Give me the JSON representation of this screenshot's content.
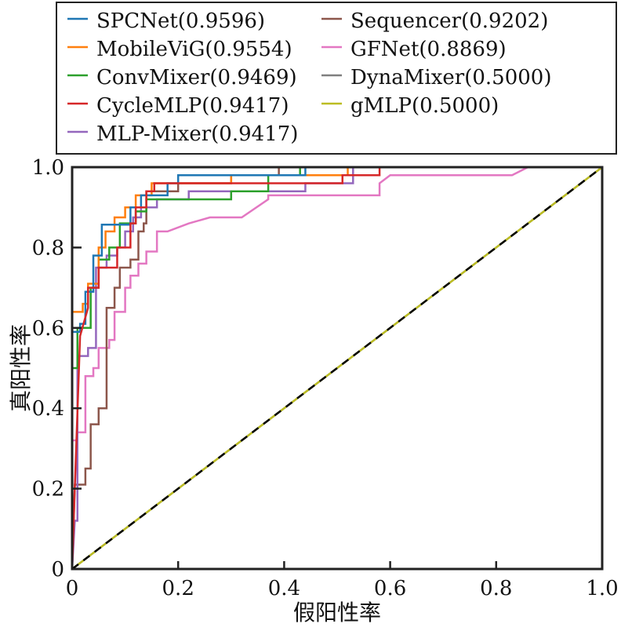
{
  "chart_data": {
    "type": "line",
    "xlabel": "假阳性率",
    "ylabel": "真阳性率",
    "xlim": [
      0,
      1
    ],
    "ylim": [
      0,
      1
    ],
    "xticks": [
      "0",
      "0.2",
      "0.4",
      "0.6",
      "0.8",
      "1.0"
    ],
    "yticks": [
      "0",
      "0.2",
      "0.4",
      "0.6",
      "0.8",
      "1.0"
    ],
    "grid": false,
    "legend_placement": "top, above plot",
    "reference_line": {
      "points": [
        [
          0,
          0
        ],
        [
          1,
          1
        ]
      ],
      "color": "#000000",
      "style": "dashed"
    },
    "series": [
      {
        "name": "SPCNet(0.9596)",
        "color": "#1f77b4",
        "points": [
          [
            0,
            0
          ],
          [
            0,
            0.59
          ],
          [
            0.015,
            0.59
          ],
          [
            0.015,
            0.61
          ],
          [
            0.025,
            0.61
          ],
          [
            0.025,
            0.69
          ],
          [
            0.04,
            0.69
          ],
          [
            0.04,
            0.78
          ],
          [
            0.056,
            0.78
          ],
          [
            0.056,
            0.857
          ],
          [
            0.11,
            0.857
          ],
          [
            0.11,
            0.9
          ],
          [
            0.13,
            0.9
          ],
          [
            0.13,
            0.93
          ],
          [
            0.18,
            0.93
          ],
          [
            0.18,
            0.96
          ],
          [
            0.2,
            0.96
          ],
          [
            0.2,
            0.98
          ],
          [
            0.44,
            0.98
          ],
          [
            0.44,
            1
          ],
          [
            1,
            1
          ]
        ]
      },
      {
        "name": "MobileViG(0.9554)",
        "color": "#ff7f0e",
        "points": [
          [
            0,
            0
          ],
          [
            0,
            0.64
          ],
          [
            0.02,
            0.64
          ],
          [
            0.02,
            0.66
          ],
          [
            0.03,
            0.66
          ],
          [
            0.03,
            0.71
          ],
          [
            0.05,
            0.71
          ],
          [
            0.05,
            0.8
          ],
          [
            0.063,
            0.8
          ],
          [
            0.063,
            0.84
          ],
          [
            0.08,
            0.84
          ],
          [
            0.08,
            0.875
          ],
          [
            0.1,
            0.875
          ],
          [
            0.1,
            0.9
          ],
          [
            0.12,
            0.9
          ],
          [
            0.12,
            0.93
          ],
          [
            0.15,
            0.93
          ],
          [
            0.15,
            0.96
          ],
          [
            0.3,
            0.96
          ],
          [
            0.3,
            0.98
          ],
          [
            0.52,
            0.98
          ],
          [
            0.52,
            1
          ],
          [
            1,
            1
          ]
        ]
      },
      {
        "name": "ConvMixer(0.9469)",
        "color": "#2ca02c",
        "points": [
          [
            0,
            0
          ],
          [
            0,
            0.5
          ],
          [
            0.01,
            0.5
          ],
          [
            0.01,
            0.6
          ],
          [
            0.035,
            0.6
          ],
          [
            0.035,
            0.7
          ],
          [
            0.05,
            0.7
          ],
          [
            0.05,
            0.77
          ],
          [
            0.07,
            0.77
          ],
          [
            0.07,
            0.8
          ],
          [
            0.09,
            0.8
          ],
          [
            0.09,
            0.86
          ],
          [
            0.12,
            0.86
          ],
          [
            0.12,
            0.89
          ],
          [
            0.14,
            0.89
          ],
          [
            0.14,
            0.92
          ],
          [
            0.3,
            0.92
          ],
          [
            0.3,
            0.94
          ],
          [
            0.37,
            0.94
          ],
          [
            0.37,
            0.98
          ],
          [
            0.43,
            0.98
          ],
          [
            0.43,
            1
          ],
          [
            1,
            1
          ]
        ]
      },
      {
        "name": "CycleMLP(0.9417)",
        "color": "#d62728",
        "points": [
          [
            0,
            0
          ],
          [
            0.005,
            0.2
          ],
          [
            0.015,
            0.58
          ],
          [
            0.03,
            0.65
          ],
          [
            0.03,
            0.7
          ],
          [
            0.05,
            0.7
          ],
          [
            0.05,
            0.75
          ],
          [
            0.085,
            0.75
          ],
          [
            0.085,
            0.8
          ],
          [
            0.11,
            0.8
          ],
          [
            0.11,
            0.86
          ],
          [
            0.12,
            0.86
          ],
          [
            0.12,
            0.9
          ],
          [
            0.14,
            0.9
          ],
          [
            0.14,
            0.94
          ],
          [
            0.155,
            0.94
          ],
          [
            0.155,
            0.96
          ],
          [
            0.51,
            0.96
          ],
          [
            0.51,
            0.98
          ],
          [
            0.58,
            0.98
          ],
          [
            0.58,
            1
          ],
          [
            1,
            1
          ]
        ]
      },
      {
        "name": "MLP-Mixer(0.9417)",
        "color": "#9467bd",
        "points": [
          [
            0,
            0
          ],
          [
            0.005,
            0.12
          ],
          [
            0.01,
            0.12
          ],
          [
            0.01,
            0.53
          ],
          [
            0.03,
            0.53
          ],
          [
            0.03,
            0.55
          ],
          [
            0.045,
            0.55
          ],
          [
            0.045,
            0.75
          ],
          [
            0.065,
            0.75
          ],
          [
            0.065,
            0.78
          ],
          [
            0.085,
            0.78
          ],
          [
            0.085,
            0.8
          ],
          [
            0.1,
            0.8
          ],
          [
            0.1,
            0.84
          ],
          [
            0.115,
            0.84
          ],
          [
            0.115,
            0.875
          ],
          [
            0.13,
            0.875
          ],
          [
            0.13,
            0.9
          ],
          [
            0.16,
            0.9
          ],
          [
            0.16,
            0.92
          ],
          [
            0.22,
            0.92
          ],
          [
            0.22,
            0.94
          ],
          [
            0.44,
            0.94
          ],
          [
            0.44,
            0.96
          ],
          [
            0.53,
            0.96
          ],
          [
            0.53,
            1
          ],
          [
            1,
            1
          ]
        ]
      },
      {
        "name": "Sequencer(0.9202)",
        "color": "#8c564b",
        "points": [
          [
            0,
            0
          ],
          [
            0.005,
            0.21
          ],
          [
            0.025,
            0.21
          ],
          [
            0.025,
            0.25
          ],
          [
            0.035,
            0.25
          ],
          [
            0.035,
            0.36
          ],
          [
            0.05,
            0.36
          ],
          [
            0.05,
            0.4
          ],
          [
            0.065,
            0.4
          ],
          [
            0.065,
            0.65
          ],
          [
            0.08,
            0.65
          ],
          [
            0.08,
            0.7
          ],
          [
            0.09,
            0.7
          ],
          [
            0.09,
            0.75
          ],
          [
            0.11,
            0.75
          ],
          [
            0.11,
            0.77
          ],
          [
            0.125,
            0.77
          ],
          [
            0.125,
            0.84
          ],
          [
            0.135,
            0.84
          ],
          [
            0.135,
            0.86
          ],
          [
            0.14,
            0.86
          ],
          [
            0.14,
            0.94
          ],
          [
            0.2,
            0.94
          ],
          [
            0.2,
            0.96
          ],
          [
            0.3,
            0.96
          ],
          [
            0.3,
            0.98
          ],
          [
            0.39,
            0.98
          ],
          [
            0.39,
            1
          ],
          [
            1,
            1
          ]
        ]
      },
      {
        "name": "GFNet(0.8869)",
        "color": "#e377c2",
        "points": [
          [
            0,
            0
          ],
          [
            0,
            0.32
          ],
          [
            0.01,
            0.32
          ],
          [
            0.01,
            0.34
          ],
          [
            0.025,
            0.34
          ],
          [
            0.025,
            0.48
          ],
          [
            0.04,
            0.48
          ],
          [
            0.04,
            0.5
          ],
          [
            0.05,
            0.5
          ],
          [
            0.05,
            0.55
          ],
          [
            0.07,
            0.55
          ],
          [
            0.07,
            0.57
          ],
          [
            0.08,
            0.57
          ],
          [
            0.08,
            0.64
          ],
          [
            0.1,
            0.64
          ],
          [
            0.1,
            0.7
          ],
          [
            0.11,
            0.7
          ],
          [
            0.11,
            0.73
          ],
          [
            0.125,
            0.73
          ],
          [
            0.125,
            0.76
          ],
          [
            0.14,
            0.76
          ],
          [
            0.14,
            0.79
          ],
          [
            0.16,
            0.79
          ],
          [
            0.16,
            0.84
          ],
          [
            0.18,
            0.84
          ],
          [
            0.22,
            0.86
          ],
          [
            0.26,
            0.875
          ],
          [
            0.32,
            0.875
          ],
          [
            0.37,
            0.92
          ],
          [
            0.37,
            0.93
          ],
          [
            0.58,
            0.93
          ],
          [
            0.58,
            0.96
          ],
          [
            0.6,
            0.98
          ],
          [
            0.83,
            0.98
          ],
          [
            0.86,
            1
          ],
          [
            1,
            1
          ]
        ]
      },
      {
        "name": "DynaMixer(0.5000)",
        "color": "#7f7f7f",
        "points": [
          [
            0,
            0
          ],
          [
            1,
            1
          ]
        ]
      },
      {
        "name": "gMLP(0.5000)",
        "color": "#bcbd22",
        "points": [
          [
            0,
            0
          ],
          [
            1,
            1
          ]
        ]
      }
    ]
  }
}
